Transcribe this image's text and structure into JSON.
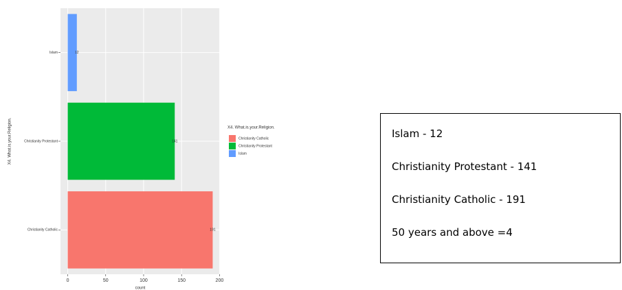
{
  "chart_data": {
    "type": "bar",
    "orientation": "horizontal",
    "categories": [
      "Christianity Catholic",
      "Christianity Protestant",
      "Islam"
    ],
    "values": [
      191,
      141,
      12
    ],
    "colors": [
      "#F8766D",
      "#00BA38",
      "#619CFF"
    ],
    "xlim": [
      -9.55,
      200.55
    ],
    "xticks": [
      0,
      50,
      100,
      150,
      200
    ],
    "x_label": "count",
    "y_label": "X4. What.is.your.Religion.",
    "legend_title": "X4. What.is.your.Religion.",
    "grid": true
  },
  "text_box": {
    "lines": [
      "Islam - 12",
      "Christianity Protestant - 141",
      "Christianity Catholic - 191",
      "50 years and above =4"
    ]
  }
}
